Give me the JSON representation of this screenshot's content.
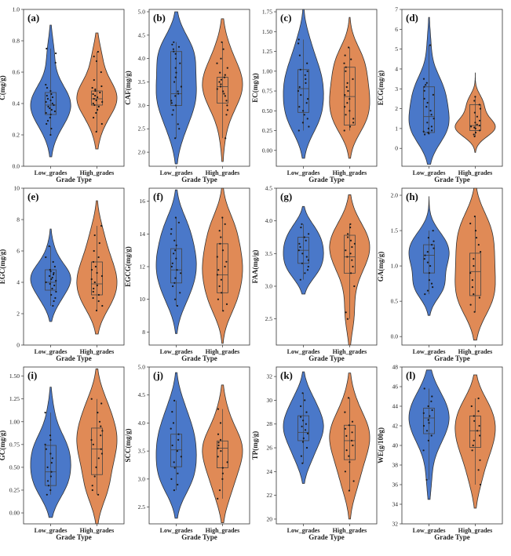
{
  "chart_data": [
    {
      "type": "violin",
      "panel_label": "(a)",
      "ylabel": "C(mg/g)",
      "xlabel": "Grade Type",
      "categories": [
        "Low_grades",
        "High_grades"
      ],
      "ylim": [
        0.0,
        1.0
      ],
      "yticks": [
        0.0,
        0.2,
        0.4,
        0.6,
        0.8,
        1.0
      ],
      "ytick_labels": [
        "0.0",
        "0.2",
        "0.4",
        "0.6",
        "0.8",
        "1.0"
      ],
      "series": [
        {
          "values": [
            0.2,
            0.24,
            0.27,
            0.29,
            0.31,
            0.33,
            0.34,
            0.35,
            0.36,
            0.37,
            0.38,
            0.39,
            0.4,
            0.41,
            0.42,
            0.43,
            0.44,
            0.45,
            0.46,
            0.48,
            0.5,
            0.52,
            0.66,
            0.72,
            0.75
          ],
          "q1": 0.33,
          "median": 0.39,
          "q3": 0.47,
          "min": 0.2,
          "max": 0.75,
          "kde_range": [
            0.06,
            0.9
          ]
        },
        {
          "values": [
            0.22,
            0.27,
            0.31,
            0.34,
            0.36,
            0.38,
            0.39,
            0.4,
            0.41,
            0.42,
            0.43,
            0.44,
            0.45,
            0.46,
            0.47,
            0.48,
            0.49,
            0.5,
            0.51,
            0.55,
            0.6,
            0.67,
            0.7,
            0.73
          ],
          "q1": 0.39,
          "median": 0.43,
          "q3": 0.48,
          "min": 0.22,
          "max": 0.73,
          "kde_range": [
            0.11,
            0.85
          ]
        }
      ]
    },
    {
      "type": "violin",
      "panel_label": "(b)",
      "ylabel": "CAF(mg/g)",
      "xlabel": "Grade Type",
      "categories": [
        "Low_grades",
        "High_grades"
      ],
      "ylim": [
        1.7,
        5.05
      ],
      "yticks": [
        2.0,
        2.5,
        3.0,
        3.5,
        4.0,
        4.5,
        5.0
      ],
      "ytick_labels": [
        "2.0",
        "2.5",
        "3.0",
        "3.5",
        "4.0",
        "4.5",
        "5.0"
      ],
      "series": [
        {
          "values": [
            2.3,
            2.5,
            2.6,
            2.8,
            2.9,
            3.0,
            3.05,
            3.1,
            3.2,
            3.25,
            3.3,
            3.4,
            3.5,
            3.6,
            3.7,
            3.8,
            3.9,
            4.0,
            4.1,
            4.15,
            4.2,
            4.25,
            4.3,
            4.35
          ],
          "q1": 3.0,
          "median": 3.25,
          "q3": 4.15,
          "min": 2.3,
          "max": 4.35,
          "kde_range": [
            1.75,
            5.0
          ]
        },
        {
          "values": [
            2.3,
            2.8,
            2.9,
            3.0,
            3.1,
            3.2,
            3.25,
            3.3,
            3.35,
            3.4,
            3.45,
            3.5,
            3.55,
            3.6,
            3.65,
            3.7,
            3.8,
            3.9,
            4.0,
            4.2,
            4.35
          ],
          "q1": 3.05,
          "median": 3.4,
          "q3": 3.6,
          "min": 2.3,
          "max": 4.35,
          "kde_range": [
            1.8,
            4.85
          ]
        }
      ]
    },
    {
      "type": "violin",
      "panel_label": "(c)",
      "ylabel": "EC(mg/g)",
      "xlabel": "Grade Type",
      "categories": [
        "Low_grades",
        "High_grades"
      ],
      "ylim": [
        -0.2,
        1.78
      ],
      "yticks": [
        0.0,
        0.25,
        0.5,
        0.75,
        1.0,
        1.25,
        1.5,
        1.75
      ],
      "ytick_labels": [
        "0.00",
        "0.25",
        "0.50",
        "0.75",
        "1.00",
        "1.25",
        "1.50",
        "1.75"
      ],
      "series": [
        {
          "values": [
            0.25,
            0.3,
            0.35,
            0.4,
            0.45,
            0.5,
            0.55,
            0.6,
            0.65,
            0.7,
            0.75,
            0.8,
            0.85,
            0.9,
            0.95,
            1.0,
            1.02,
            1.1,
            1.2,
            1.35,
            1.4
          ],
          "q1": 0.48,
          "median": 0.78,
          "q3": 1.02,
          "min": 0.25,
          "max": 1.4,
          "kde_range": [
            -0.1,
            1.78
          ]
        },
        {
          "values": [
            0.25,
            0.3,
            0.35,
            0.4,
            0.45,
            0.5,
            0.55,
            0.6,
            0.65,
            0.7,
            0.75,
            0.8,
            0.85,
            0.9,
            1.0,
            1.05,
            1.1,
            1.15,
            1.2,
            1.3
          ],
          "q1": 0.32,
          "median": 0.68,
          "q3": 1.05,
          "min": 0.25,
          "max": 1.3,
          "kde_range": [
            -0.1,
            1.68
          ]
        }
      ]
    },
    {
      "type": "violin",
      "panel_label": "(d)",
      "ylabel": "ECG(mg/g)",
      "xlabel": "Grade Type",
      "categories": [
        "Low_grades",
        "High_grades"
      ],
      "ylim": [
        -0.9,
        7.0
      ],
      "yticks": [
        0,
        1,
        2,
        3,
        4,
        5,
        6,
        7
      ],
      "ytick_labels": [
        "0",
        "1",
        "2",
        "3",
        "4",
        "5",
        "6",
        "7"
      ],
      "series": [
        {
          "values": [
            0.7,
            0.75,
            0.8,
            0.85,
            0.9,
            1.0,
            1.1,
            1.3,
            1.5,
            1.7,
            1.9,
            2.1,
            2.3,
            2.5,
            2.7,
            2.9,
            3.1,
            3.2,
            3.3,
            3.5,
            5.2
          ],
          "q1": 0.8,
          "median": 1.6,
          "q3": 3.1,
          "min": 0.7,
          "max": 5.2,
          "kde_range": [
            -0.8,
            6.6
          ]
        },
        {
          "values": [
            0.6,
            0.7,
            0.8,
            0.9,
            1.0,
            1.05,
            1.1,
            1.15,
            1.2,
            1.3,
            1.4,
            1.6,
            1.8,
            2.0,
            2.2,
            2.4,
            2.6
          ],
          "q1": 0.9,
          "median": 1.15,
          "q3": 2.2,
          "min": 0.6,
          "max": 2.6,
          "kde_range": [
            -0.2,
            3.8
          ]
        }
      ]
    },
    {
      "type": "violin",
      "panel_label": "(e)",
      "ylabel": "EGC(mg/g)",
      "xlabel": "Grade Type",
      "categories": [
        "Low_grades",
        "High_grades"
      ],
      "ylim": [
        0,
        10
      ],
      "yticks": [
        0,
        2,
        4,
        6,
        8,
        10
      ],
      "ytick_labels": [
        "0",
        "2",
        "4",
        "6",
        "8",
        "10"
      ],
      "series": [
        {
          "values": [
            2.5,
            2.8,
            3.0,
            3.2,
            3.4,
            3.6,
            3.8,
            3.9,
            4.0,
            4.1,
            4.2,
            4.3,
            4.4,
            4.5,
            4.6,
            4.7,
            4.8,
            5.0,
            5.3,
            5.6,
            6.3
          ],
          "q1": 3.5,
          "median": 4.0,
          "q3": 4.8,
          "min": 2.5,
          "max": 6.3,
          "kde_range": [
            1.5,
            7.4
          ]
        },
        {
          "values": [
            2.2,
            2.5,
            2.8,
            3.0,
            3.2,
            3.4,
            3.6,
            3.8,
            4.0,
            4.2,
            4.4,
            4.6,
            4.8,
            5.0,
            5.3,
            5.6,
            6.0,
            6.5,
            7.0,
            7.6
          ],
          "q1": 3.2,
          "median": 3.9,
          "q3": 5.3,
          "min": 2.2,
          "max": 7.6,
          "kde_range": [
            0.7,
            9.2
          ]
        }
      ]
    },
    {
      "type": "violin",
      "panel_label": "(f)",
      "ylabel": "EGCG(mg/g)",
      "xlabel": "Grade Type",
      "categories": [
        "Low_grades",
        "High_grades"
      ],
      "ylim": [
        7.2,
        16.8
      ],
      "yticks": [
        8,
        10,
        12,
        14,
        16
      ],
      "ytick_labels": [
        "8",
        "10",
        "12",
        "14",
        "16"
      ],
      "series": [
        {
          "values": [
            9.6,
            10.0,
            10.4,
            10.8,
            11.0,
            11.3,
            11.6,
            11.8,
            12.0,
            12.2,
            12.5,
            12.8,
            13.0,
            13.3,
            13.6,
            14.0,
            14.3,
            14.7,
            15.0
          ],
          "q1": 11.0,
          "median": 11.8,
          "q3": 13.1,
          "min": 9.6,
          "max": 15.0,
          "kde_range": [
            7.9,
            16.7
          ]
        },
        {
          "values": [
            9.3,
            9.7,
            10.0,
            10.4,
            10.8,
            11.2,
            11.5,
            11.8,
            12.0,
            12.3,
            12.6,
            13.0,
            13.4,
            13.8,
            14.2,
            14.6,
            15.0
          ],
          "q1": 10.4,
          "median": 11.5,
          "q3": 13.4,
          "min": 9.3,
          "max": 15.0,
          "kde_range": [
            7.3,
            16.8
          ]
        }
      ]
    },
    {
      "type": "violin",
      "panel_label": "(g)",
      "ylabel": "FAA(mg/g)",
      "xlabel": "Grade Type",
      "categories": [
        "Low_grades",
        "High_grades"
      ],
      "ylim": [
        2.1,
        4.5
      ],
      "yticks": [
        2.5,
        3.0,
        3.5,
        4.0,
        4.5
      ],
      "ytick_labels": [
        "2.5",
        "3.0",
        "3.5",
        "4.0",
        "4.5"
      ],
      "series": [
        {
          "values": [
            3.1,
            3.2,
            3.25,
            3.3,
            3.35,
            3.4,
            3.45,
            3.5,
            3.55,
            3.6,
            3.65,
            3.7,
            3.75,
            3.8,
            3.9,
            3.95
          ],
          "q1": 3.35,
          "median": 3.55,
          "q3": 3.75,
          "min": 3.1,
          "max": 3.95,
          "kde_range": [
            2.88,
            4.22
          ]
        },
        {
          "values": [
            2.5,
            2.6,
            3.0,
            3.2,
            3.3,
            3.4,
            3.45,
            3.5,
            3.55,
            3.6,
            3.65,
            3.7,
            3.75,
            3.8,
            3.9,
            3.95
          ],
          "q1": 3.2,
          "median": 3.45,
          "q3": 3.78,
          "min": 2.5,
          "max": 3.95,
          "kde_range": [
            2.1,
            4.4
          ]
        }
      ]
    },
    {
      "type": "violin",
      "panel_label": "(h)",
      "ylabel": "GA(mg/g)",
      "xlabel": "Grade Type",
      "categories": [
        "Low_grades",
        "High_grades"
      ],
      "ylim": [
        -0.12,
        2.1
      ],
      "yticks": [
        0.0,
        0.5,
        1.0,
        1.5,
        2.0
      ],
      "ytick_labels": [
        "0.0",
        "0.5",
        "1.0",
        "1.5",
        "2.0"
      ],
      "series": [
        {
          "values": [
            0.6,
            0.65,
            0.7,
            0.75,
            0.8,
            0.9,
            1.0,
            1.05,
            1.1,
            1.15,
            1.2,
            1.25,
            1.3,
            1.35,
            1.4,
            1.5
          ],
          "q1": 0.9,
          "median": 1.15,
          "q3": 1.3,
          "min": 0.6,
          "max": 1.5,
          "kde_range": [
            0.3,
            1.98
          ]
        },
        {
          "values": [
            0.35,
            0.45,
            0.55,
            0.6,
            0.7,
            0.8,
            0.9,
            1.0,
            1.1,
            1.2,
            1.3,
            1.4,
            1.5,
            1.6,
            1.7
          ],
          "q1": 0.58,
          "median": 0.92,
          "q3": 1.18,
          "min": 0.35,
          "max": 1.7,
          "kde_range": [
            -0.05,
            2.1
          ]
        }
      ]
    },
    {
      "type": "violin",
      "panel_label": "(i)",
      "ylabel": "GC(mg/g)",
      "xlabel": "Grade Type",
      "categories": [
        "Low_grades",
        "High_grades"
      ],
      "ylim": [
        -0.12,
        1.6
      ],
      "yticks": [
        0.0,
        0.25,
        0.5,
        0.75,
        1.0,
        1.25,
        1.5
      ],
      "ytick_labels": [
        "0.00",
        "0.25",
        "0.50",
        "0.75",
        "1.00",
        "1.25",
        "1.50"
      ],
      "series": [
        {
          "values": [
            0.2,
            0.25,
            0.3,
            0.35,
            0.4,
            0.45,
            0.5,
            0.55,
            0.6,
            0.65,
            0.7,
            0.75,
            0.8,
            0.85,
            1.1
          ],
          "q1": 0.3,
          "median": 0.45,
          "q3": 0.74,
          "min": 0.2,
          "max": 1.1,
          "kde_range": [
            -0.05,
            1.38
          ]
        },
        {
          "values": [
            0.2,
            0.25,
            0.3,
            0.4,
            0.5,
            0.6,
            0.65,
            0.7,
            0.75,
            0.8,
            0.85,
            0.9,
            0.95,
            1.0,
            1.1,
            1.2,
            1.25
          ],
          "q1": 0.42,
          "median": 0.7,
          "q3": 0.93,
          "min": 0.2,
          "max": 1.25,
          "kde_range": [
            -0.12,
            1.58
          ]
        }
      ]
    },
    {
      "type": "violin",
      "panel_label": "(j)",
      "ylabel": "SCC(mg/g)",
      "xlabel": "Grade Type",
      "categories": [
        "Low_grades",
        "High_grades"
      ],
      "ylim": [
        2.2,
        5.0
      ],
      "yticks": [
        2.5,
        3.0,
        3.5,
        4.0,
        4.5,
        5.0
      ],
      "ytick_labels": [
        "2.5",
        "3.0",
        "3.5",
        "4.0",
        "4.5",
        "5.0"
      ],
      "series": [
        {
          "values": [
            2.8,
            2.9,
            3.0,
            3.1,
            3.2,
            3.3,
            3.4,
            3.5,
            3.6,
            3.7,
            3.8,
            3.9,
            4.0,
            4.2,
            4.4
          ],
          "q1": 3.22,
          "median": 3.52,
          "q3": 3.8,
          "min": 2.8,
          "max": 4.4,
          "kde_range": [
            2.3,
            4.9
          ]
        },
        {
          "values": [
            2.65,
            2.8,
            3.0,
            3.1,
            3.2,
            3.3,
            3.4,
            3.5,
            3.55,
            3.6,
            3.65,
            3.7,
            3.8,
            4.0,
            4.25
          ],
          "q1": 3.2,
          "median": 3.55,
          "q3": 3.68,
          "min": 2.65,
          "max": 4.25,
          "kde_range": [
            2.22,
            4.68
          ]
        }
      ]
    },
    {
      "type": "violin",
      "panel_label": "(k)",
      "ylabel": "TP(mg/g)",
      "xlabel": "Grade Type",
      "categories": [
        "Low_grades",
        "High_grades"
      ],
      "ylim": [
        19.6,
        32.8
      ],
      "yticks": [
        20,
        22,
        24,
        26,
        28,
        30,
        32
      ],
      "ytick_labels": [
        "20",
        "22",
        "24",
        "26",
        "28",
        "30",
        "32"
      ],
      "series": [
        {
          "values": [
            24.7,
            25.3,
            26.0,
            26.5,
            26.8,
            27.2,
            27.5,
            27.8,
            28.0,
            28.3,
            28.6,
            29.0,
            29.5,
            30.0,
            30.6
          ],
          "q1": 26.6,
          "median": 27.3,
          "q3": 28.7,
          "min": 24.7,
          "max": 30.6,
          "kde_range": [
            23.0,
            32.4
          ]
        },
        {
          "values": [
            22.4,
            23.2,
            24.0,
            24.8,
            25.3,
            25.8,
            26.2,
            26.6,
            27.0,
            27.3,
            27.6,
            27.9,
            28.2,
            29.0,
            30.2
          ],
          "q1": 25.0,
          "median": 26.6,
          "q3": 27.9,
          "min": 22.4,
          "max": 30.2,
          "kde_range": [
            20.0,
            32.3
          ]
        }
      ]
    },
    {
      "type": "violin",
      "panel_label": "(l)",
      "ylabel": "WE(g/100g)",
      "xlabel": "Grade Type",
      "categories": [
        "Low_grades",
        "High_grades"
      ],
      "ylim": [
        32,
        48
      ],
      "yticks": [
        32,
        34,
        36,
        38,
        40,
        42,
        44,
        46,
        48
      ],
      "ytick_labels": [
        "32",
        "34",
        "36",
        "38",
        "40",
        "42",
        "44",
        "46",
        "48"
      ],
      "series": [
        {
          "values": [
            36.5,
            39.5,
            40.5,
            41.0,
            41.5,
            42.0,
            42.3,
            42.6,
            43.0,
            43.3,
            43.6,
            44.0,
            44.5,
            45.0,
            45.8
          ],
          "q1": 41.2,
          "median": 42.8,
          "q3": 43.8,
          "min": 36.5,
          "max": 45.8,
          "kde_range": [
            34.5,
            47.7
          ]
        },
        {
          "values": [
            36.0,
            37.5,
            38.5,
            39.5,
            40.0,
            40.5,
            41.0,
            41.5,
            42.0,
            42.5,
            43.0,
            43.5,
            44.0,
            44.8
          ],
          "q1": 39.8,
          "median": 41.5,
          "q3": 43.0,
          "min": 36.0,
          "max": 44.8,
          "kde_range": [
            33.6,
            47.2
          ]
        }
      ]
    }
  ],
  "colors": {
    "low": "#4a78c9",
    "high": "#e08a56",
    "outline": "#333333",
    "box": "#444444",
    "dot": "#1a1a1a"
  }
}
